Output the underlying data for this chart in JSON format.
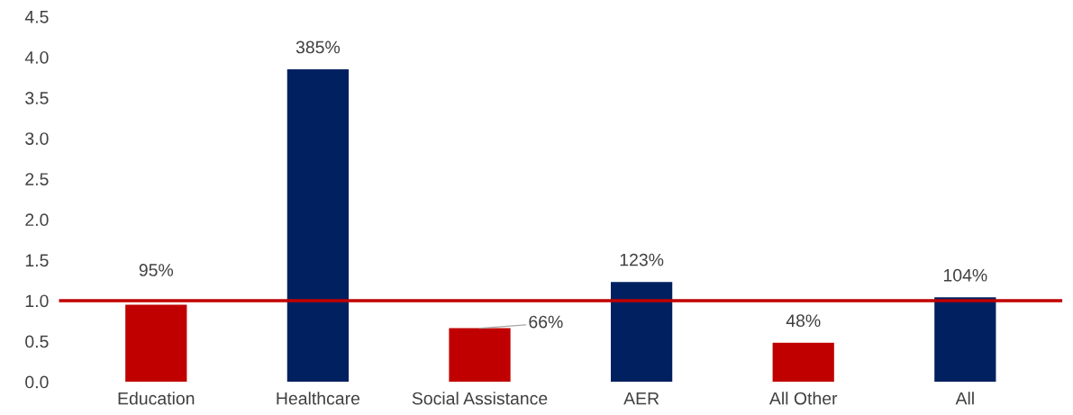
{
  "chart_data": {
    "type": "bar",
    "categories": [
      "Education",
      "Healthcare",
      "Social Assistance",
      "AER",
      "All Other",
      "All"
    ],
    "values": [
      0.95,
      3.85,
      0.66,
      1.23,
      0.48,
      1.04
    ],
    "colors": [
      "#c00000",
      "#002060",
      "#c00000",
      "#002060",
      "#c00000",
      "#002060"
    ],
    "value_labels": [
      "95%",
      "385%",
      "66%",
      "123%",
      "48%",
      "104%"
    ],
    "ylim": [
      0,
      4.5
    ],
    "yticks": [
      {
        "value": 0,
        "label": "0.0"
      },
      {
        "value": 0.5,
        "label": "0.5"
      },
      {
        "value": 1,
        "label": "1.0"
      },
      {
        "value": 1.5,
        "label": "1.5"
      },
      {
        "value": 2,
        "label": "2.0"
      },
      {
        "value": 2.5,
        "label": "2.5"
      },
      {
        "value": 3,
        "label": "3.0"
      },
      {
        "value": 3.5,
        "label": "3.5"
      },
      {
        "value": 4,
        "label": "4.0"
      },
      {
        "value": 4.5,
        "label": "4.5"
      }
    ],
    "ref_lines": [
      {
        "axis": "y",
        "value": 1,
        "color": "#c00000"
      }
    ],
    "grid": false,
    "legend": false
  }
}
